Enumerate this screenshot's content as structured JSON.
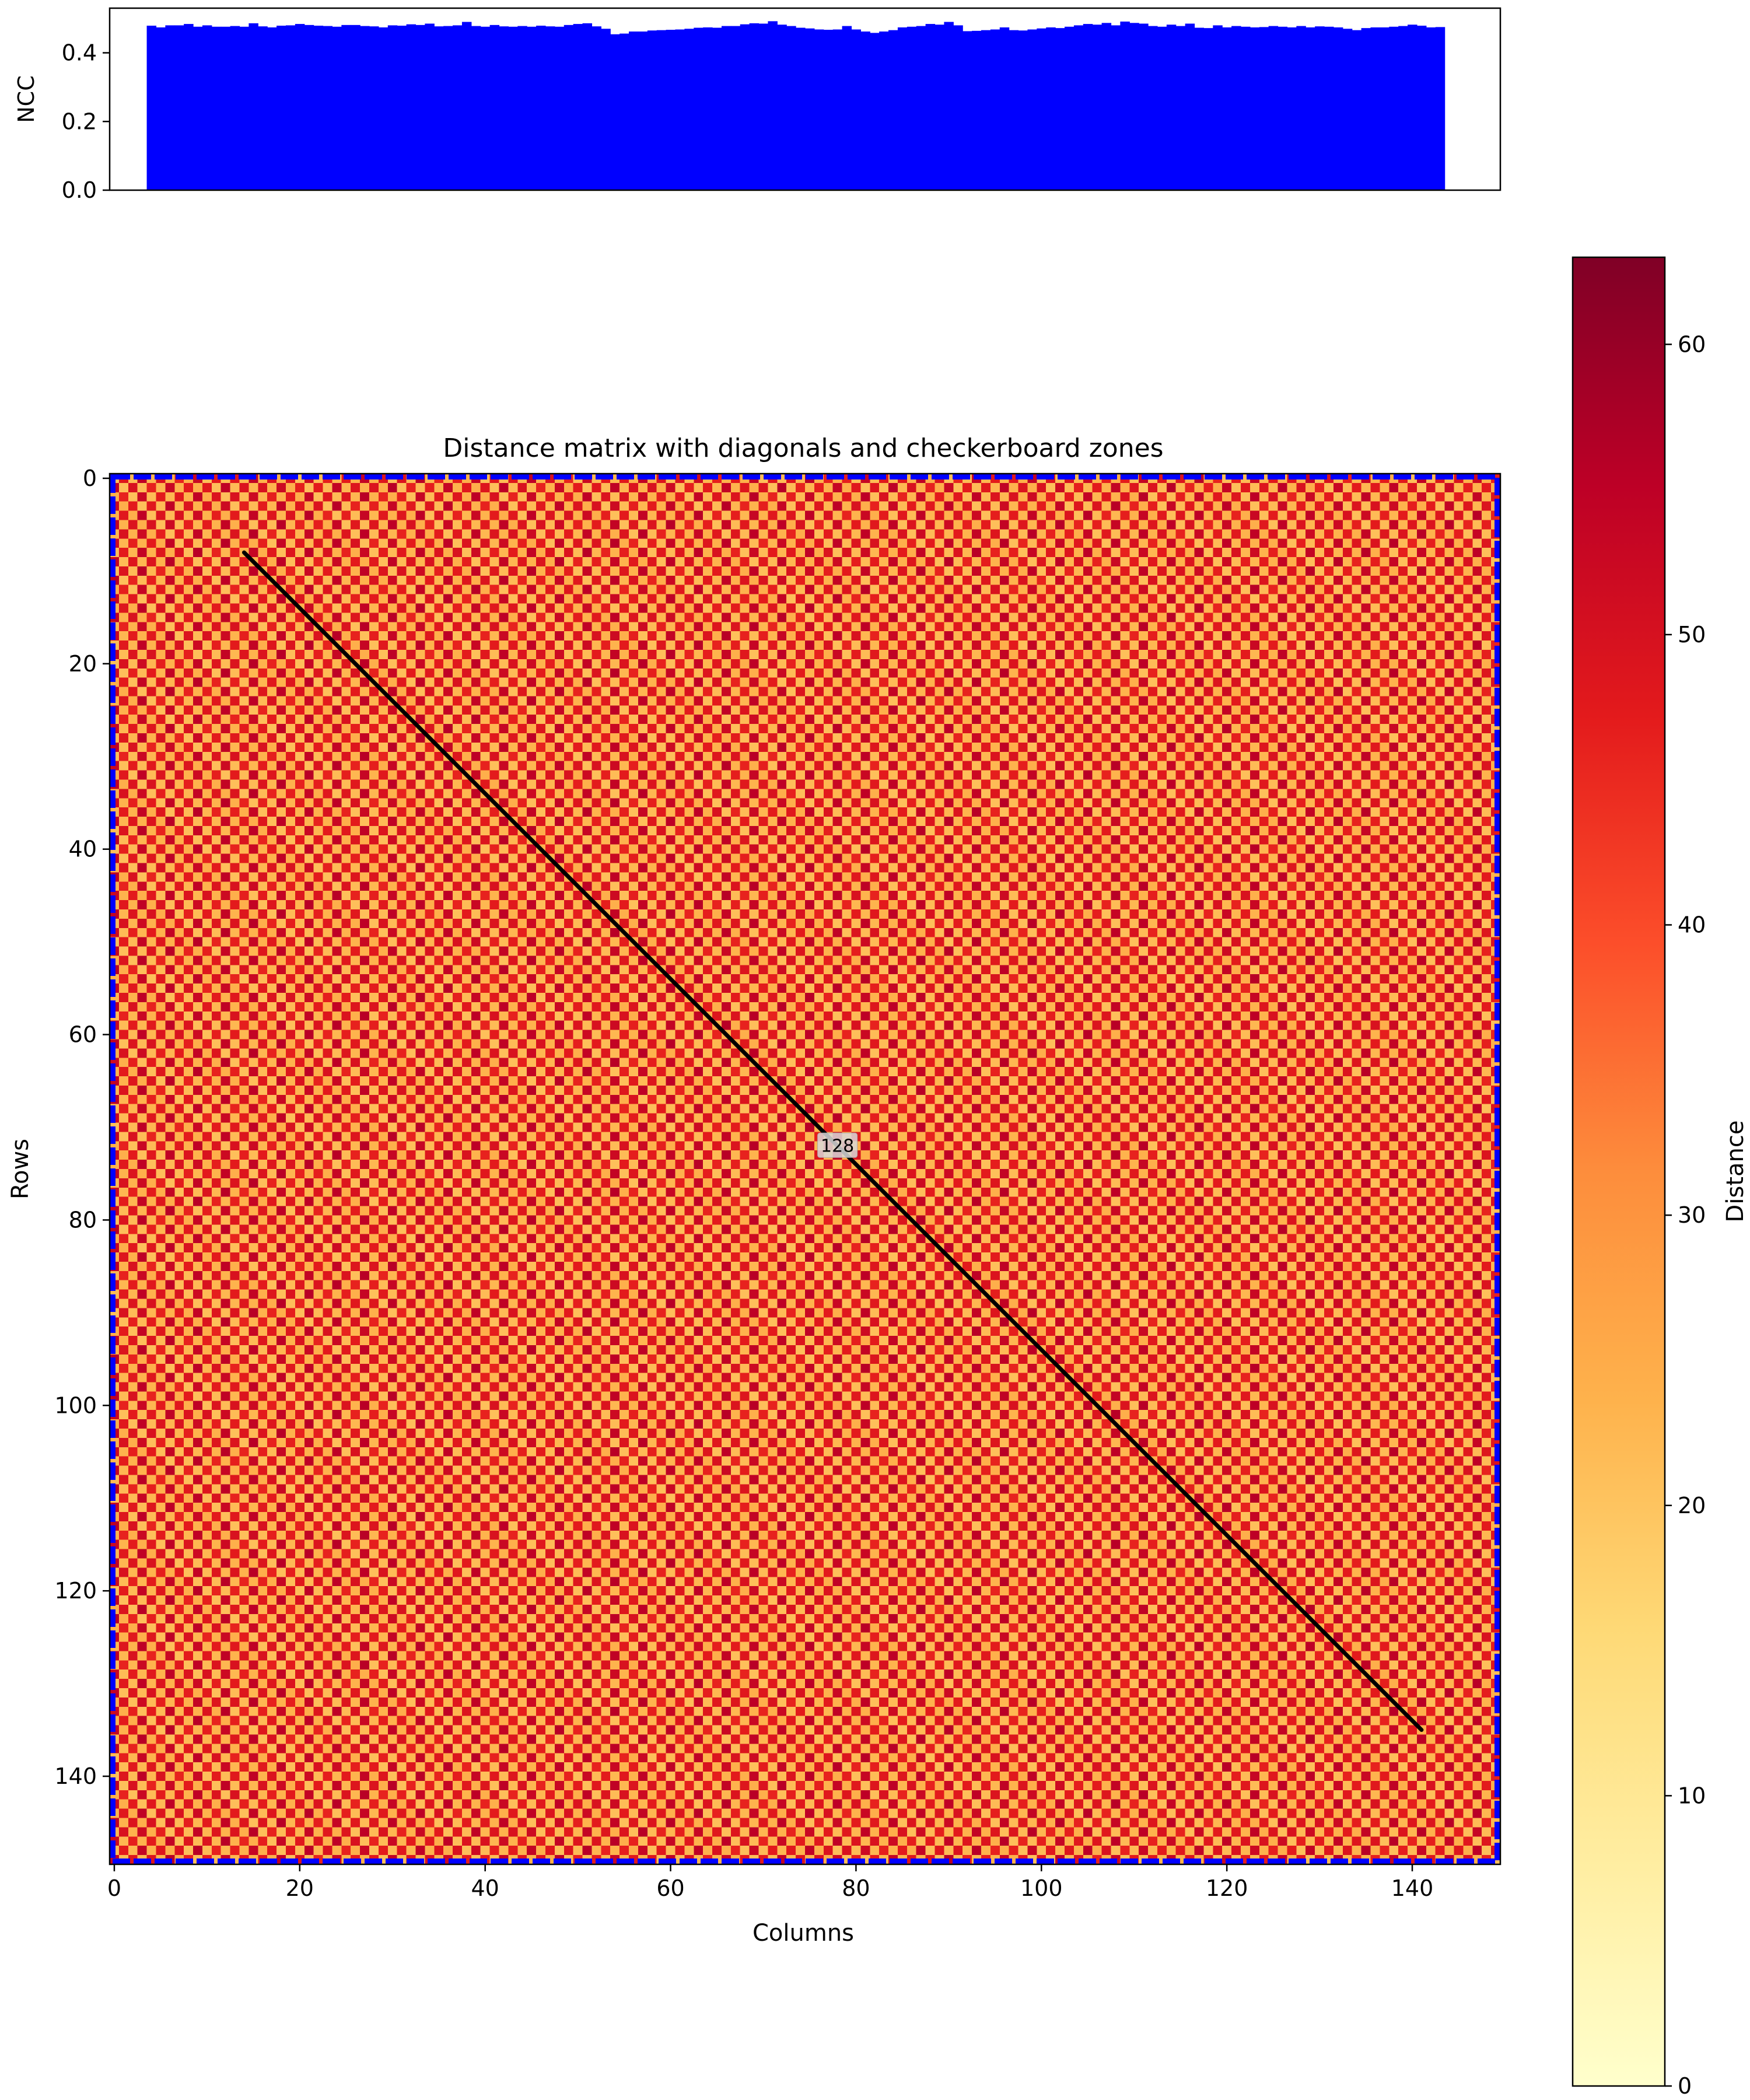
{
  "chart_data": [
    {
      "type": "bar",
      "ylabel": "NCC",
      "xlim": [
        -0.5,
        149.5
      ],
      "ylim": [
        0,
        0.53
      ],
      "yticks": [
        0.0,
        0.2,
        0.4
      ],
      "x_start": 4,
      "x_end": 143,
      "values": [
        0.479,
        0.474,
        0.48,
        0.48,
        0.484,
        0.476,
        0.48,
        0.476,
        0.476,
        0.478,
        0.476,
        0.486,
        0.477,
        0.474,
        0.479,
        0.48,
        0.484,
        0.481,
        0.479,
        0.478,
        0.476,
        0.481,
        0.481,
        0.478,
        0.477,
        0.474,
        0.48,
        0.479,
        0.483,
        0.481,
        0.485,
        0.477,
        0.478,
        0.48,
        0.49,
        0.478,
        0.476,
        0.481,
        0.477,
        0.476,
        0.478,
        0.476,
        0.479,
        0.477,
        0.476,
        0.481,
        0.484,
        0.486,
        0.477,
        0.47,
        0.454,
        0.456,
        0.462,
        0.462,
        0.465,
        0.466,
        0.467,
        0.468,
        0.47,
        0.473,
        0.474,
        0.473,
        0.478,
        0.478,
        0.483,
        0.486,
        0.485,
        0.492,
        0.482,
        0.478,
        0.473,
        0.471,
        0.468,
        0.467,
        0.468,
        0.478,
        0.468,
        0.462,
        0.458,
        0.462,
        0.466,
        0.474,
        0.476,
        0.478,
        0.484,
        0.482,
        0.49,
        0.48,
        0.463,
        0.464,
        0.466,
        0.468,
        0.474,
        0.466,
        0.465,
        0.468,
        0.471,
        0.474,
        0.472,
        0.476,
        0.48,
        0.484,
        0.482,
        0.487,
        0.48,
        0.491,
        0.487,
        0.485,
        0.478,
        0.476,
        0.482,
        0.478,
        0.485,
        0.473,
        0.472,
        0.48,
        0.474,
        0.478,
        0.476,
        0.474,
        0.475,
        0.478,
        0.476,
        0.474,
        0.478,
        0.474,
        0.477,
        0.476,
        0.474,
        0.47,
        0.466,
        0.472,
        0.474,
        0.474,
        0.476,
        0.478,
        0.482,
        0.479,
        0.474,
        0.475
      ],
      "color": "#0000ff"
    },
    {
      "type": "heatmap",
      "title": "Distance matrix with diagonals and checkerboard zones",
      "xlabel": "Columns",
      "ylabel": "Rows",
      "shape": [
        150,
        150
      ],
      "xlim": [
        -0.5,
        149.5
      ],
      "ylim": [
        149.5,
        -0.5
      ],
      "xticks": [
        0,
        20,
        40,
        60,
        80,
        100,
        120,
        140
      ],
      "yticks": [
        0,
        20,
        40,
        60,
        80,
        100,
        120,
        140
      ],
      "colormap": "YlOrRd",
      "colorbar": {
        "label": "Distance",
        "range": [
          0,
          63
        ],
        "ticks": [
          0,
          10,
          20,
          30,
          40,
          50,
          60
        ]
      },
      "pattern": "checkerboard with period 2 cells, light cells ~22, dark cells ~50, darker stripes every 3 columns",
      "border_color": "#0000ff",
      "diagonal": {
        "from": [
          14,
          8
        ],
        "to": [
          141,
          135
        ],
        "color": "#000000",
        "label": "128",
        "label_at": [
          78,
          72
        ]
      }
    }
  ]
}
